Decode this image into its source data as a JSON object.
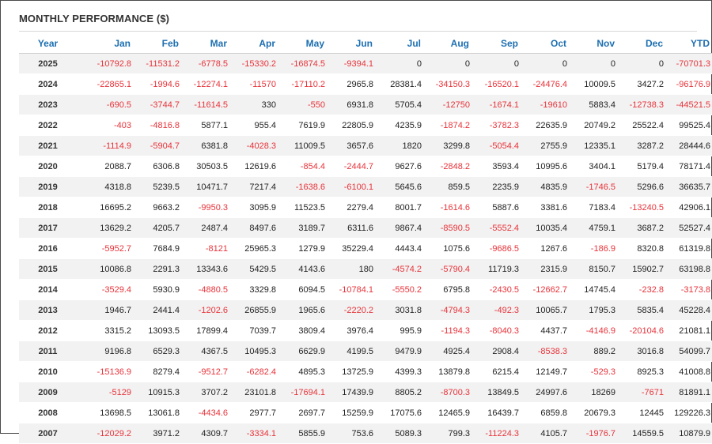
{
  "title": "MONTHLY PERFORMANCE ($)",
  "colors": {
    "header_text": "#1d6fb1",
    "negative": "#e8333a",
    "positive": "#222222",
    "stripe": "#f2f2f2"
  },
  "columns": [
    "Year",
    "Jan",
    "Feb",
    "Mar",
    "Apr",
    "May",
    "Jun",
    "Jul",
    "Aug",
    "Sep",
    "Oct",
    "Nov",
    "Dec",
    "YTD"
  ],
  "rows": [
    [
      "2025",
      "-10792.8",
      "-11531.2",
      "-6778.5",
      "-15330.2",
      "-16874.5",
      "-9394.1",
      "0",
      "0",
      "0",
      "0",
      "0",
      "0",
      "-70701.3"
    ],
    [
      "2024",
      "-22865.1",
      "-1994.6",
      "-12274.1",
      "-11570",
      "-17110.2",
      "2965.8",
      "28381.4",
      "-34150.3",
      "-16520.1",
      "-24476.4",
      "10009.5",
      "3427.2",
      "-96176.9"
    ],
    [
      "2023",
      "-690.5",
      "-3744.7",
      "-11614.5",
      "330",
      "-550",
      "6931.8",
      "5705.4",
      "-12750",
      "-1674.1",
      "-19610",
      "5883.4",
      "-12738.3",
      "-44521.5"
    ],
    [
      "2022",
      "-403",
      "-4816.8",
      "5877.1",
      "955.4",
      "7619.9",
      "22805.9",
      "4235.9",
      "-1874.2",
      "-3782.3",
      "22635.9",
      "20749.2",
      "25522.4",
      "99525.4"
    ],
    [
      "2021",
      "-1114.9",
      "-5904.7",
      "6381.8",
      "-4028.3",
      "11009.5",
      "3657.6",
      "1820",
      "3299.8",
      "-5054.4",
      "2755.9",
      "12335.1",
      "3287.2",
      "28444.6"
    ],
    [
      "2020",
      "2088.7",
      "6306.8",
      "30503.5",
      "12619.6",
      "-854.4",
      "-2444.7",
      "9627.6",
      "-2848.2",
      "3593.4",
      "10995.6",
      "3404.1",
      "5179.4",
      "78171.4"
    ],
    [
      "2019",
      "4318.8",
      "5239.5",
      "10471.7",
      "7217.4",
      "-1638.6",
      "-6100.1",
      "5645.6",
      "859.5",
      "2235.9",
      "4835.9",
      "-1746.5",
      "5296.6",
      "36635.7"
    ],
    [
      "2018",
      "16695.2",
      "9663.2",
      "-9950.3",
      "3095.9",
      "11523.5",
      "2279.4",
      "8001.7",
      "-1614.6",
      "5887.6",
      "3381.6",
      "7183.4",
      "-13240.5",
      "42906.1"
    ],
    [
      "2017",
      "13629.2",
      "4205.7",
      "2487.4",
      "8497.6",
      "3189.7",
      "6311.6",
      "9867.4",
      "-8590.5",
      "-5552.4",
      "10035.4",
      "4759.1",
      "3687.2",
      "52527.4"
    ],
    [
      "2016",
      "-5952.7",
      "7684.9",
      "-8121",
      "25965.3",
      "1279.9",
      "35229.4",
      "4443.4",
      "1075.6",
      "-9686.5",
      "1267.6",
      "-186.9",
      "8320.8",
      "61319.8"
    ],
    [
      "2015",
      "10086.8",
      "2291.3",
      "13343.6",
      "5429.5",
      "4143.6",
      "180",
      "-4574.2",
      "-5790.4",
      "11719.3",
      "2315.9",
      "8150.7",
      "15902.7",
      "63198.8"
    ],
    [
      "2014",
      "-3529.4",
      "5930.9",
      "-4880.5",
      "3329.8",
      "6094.5",
      "-10784.1",
      "-5550.2",
      "6795.8",
      "-2430.5",
      "-12662.7",
      "14745.4",
      "-232.8",
      "-3173.8"
    ],
    [
      "2013",
      "1946.7",
      "2441.4",
      "-1202.6",
      "26855.9",
      "1965.6",
      "-2220.2",
      "3031.8",
      "-4794.3",
      "-492.3",
      "10065.7",
      "1795.3",
      "5835.4",
      "45228.4"
    ],
    [
      "2012",
      "3315.2",
      "13093.5",
      "17899.4",
      "7039.7",
      "3809.4",
      "3976.4",
      "995.9",
      "-1194.3",
      "-8040.3",
      "4437.7",
      "-4146.9",
      "-20104.6",
      "21081.1"
    ],
    [
      "2011",
      "9196.8",
      "6529.3",
      "4367.5",
      "10495.3",
      "6629.9",
      "4199.5",
      "9479.9",
      "4925.4",
      "2908.4",
      "-8538.3",
      "889.2",
      "3016.8",
      "54099.7"
    ],
    [
      "2010",
      "-15136.9",
      "8279.4",
      "-9512.7",
      "-6282.4",
      "4895.3",
      "13725.9",
      "4399.3",
      "13879.8",
      "6215.4",
      "12149.7",
      "-529.3",
      "8925.3",
      "41008.8"
    ],
    [
      "2009",
      "-5129",
      "10915.3",
      "3707.2",
      "23101.8",
      "-17694.1",
      "17439.9",
      "8805.2",
      "-8700.3",
      "13849.5",
      "24997.6",
      "18269",
      "-7671",
      "81891.1"
    ],
    [
      "2008",
      "13698.5",
      "13061.8",
      "-4434.6",
      "2977.7",
      "2697.7",
      "15259.9",
      "17075.6",
      "12465.9",
      "16439.7",
      "6859.8",
      "20679.3",
      "12445",
      "129226.3"
    ],
    [
      "2007",
      "-12029.2",
      "3971.2",
      "4309.7",
      "-3334.1",
      "5855.9",
      "753.6",
      "5089.3",
      "799.3",
      "-11224.3",
      "4105.7",
      "-1976.7",
      "14559.5",
      "10879.9"
    ]
  ]
}
